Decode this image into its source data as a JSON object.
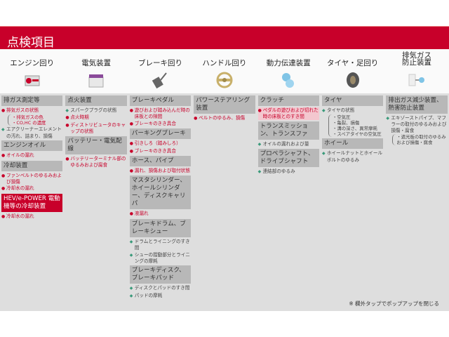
{
  "header": {
    "title": "点検項目"
  },
  "categories": [
    {
      "label": "エンジン回り",
      "icon": "engine-icon"
    },
    {
      "label": "電気装置",
      "icon": "battery-icon"
    },
    {
      "label": "ブレーキ回り",
      "icon": "brake-pedal-icon"
    },
    {
      "label": "ハンドル回り",
      "icon": "steering-wheel-icon"
    },
    {
      "label": "動力伝達装置",
      "icon": "gears-icon"
    },
    {
      "label": "タイヤ・足回り",
      "icon": "tire-icon"
    },
    {
      "label": "排気ガス\n防止装置",
      "icon": "exhaust-icon"
    }
  ],
  "colors": {
    "accent": "#c8002a",
    "green_bullet": "#3a9a7a",
    "section_bg": "#b8b8b8",
    "panel_bg": "#dedede"
  },
  "columns": [
    {
      "sections": [
        {
          "title": "排ガス測定等",
          "items": [
            {
              "bullet": "red",
              "text": "排気ガスの状態",
              "sub": [
                "・排気ガスの色",
                "・CO,HC の濃度"
              ]
            },
            {
              "bullet": "green",
              "text": "エアクリーナーエレメントの汚れ、詰まり、損傷"
            }
          ]
        },
        {
          "title": "エンジンオイル",
          "items": [
            {
              "bullet": "red",
              "text": "オイルの漏れ"
            }
          ]
        },
        {
          "title": "冷却装置",
          "items": [
            {
              "bullet": "red",
              "text": "ファンベルトのゆるみおよび損傷"
            },
            {
              "bullet": "red",
              "text": "冷却水の漏れ"
            }
          ]
        },
        {
          "title": "HEV/e-POWER 電動機等の冷却装置",
          "highlight": true,
          "items": [
            {
              "bullet": "red",
              "text": "冷却水の漏れ"
            }
          ]
        }
      ]
    },
    {
      "sections": [
        {
          "title": "点火装置",
          "items": [
            {
              "bullet": "green",
              "text": "スパークプラグの状態"
            },
            {
              "bullet": "red",
              "text": "点火時期"
            },
            {
              "bullet": "red",
              "text": "ディストリビュータのキャップの状態"
            }
          ]
        },
        {
          "title": "バッテリー・電気配線",
          "items": [
            {
              "bullet": "red",
              "text": "バッテリーターミナル部のゆるみおよび腐食"
            }
          ]
        }
      ]
    },
    {
      "sections": [
        {
          "title": "ブレーキペダル",
          "items": [
            {
              "bullet": "red",
              "text": "遊びおよび踏み込んだ時の床板との隙間"
            },
            {
              "bullet": "red",
              "text": "ブレーキのきき具合"
            }
          ]
        },
        {
          "title": "パーキングブレーキ",
          "items": [
            {
              "bullet": "red",
              "text": "引きしろ（踏みしろ）"
            },
            {
              "bullet": "red",
              "text": "ブレーキのきき具合"
            }
          ]
        },
        {
          "title": "ホース、パイプ",
          "items": [
            {
              "bullet": "red",
              "text": "漏れ、損傷および取付状態"
            }
          ]
        },
        {
          "title": "マスタシリンダー、ホイールシリンダー、ディスクキャリパ",
          "items": [
            {
              "bullet": "red",
              "text": "液漏れ"
            }
          ]
        },
        {
          "title": "ブレーキドラム、ブレーキシュー",
          "items": [
            {
              "bullet": "green",
              "text": "ドラムとライニングのすき間"
            },
            {
              "bullet": "green",
              "text": "シューの摺動部分とライニングの摩耗"
            }
          ]
        },
        {
          "title": "ブレーキディスク、ブレーキパッド",
          "items": [
            {
              "bullet": "green",
              "text": "ディスクとパッドのすき間"
            },
            {
              "bullet": "green",
              "text": "パッドの摩耗"
            }
          ]
        }
      ]
    },
    {
      "sections": [
        {
          "title": "パワーステアリング装置",
          "items": [
            {
              "bullet": "red",
              "text": "ベルトのゆるみ、損傷"
            }
          ]
        }
      ]
    },
    {
      "sections": [
        {
          "title": "クラッチ",
          "items": [
            {
              "bullet": "red",
              "text": "ペダルの遊びおよび切れた時の床板とのすき間",
              "selected": true
            }
          ]
        },
        {
          "title": "トランスミッション、トランスファ",
          "items": [
            {
              "bullet": "green",
              "text": "オイルの漏れおよび量"
            }
          ]
        },
        {
          "title": "プロペラシャフト、ドライブシャフト",
          "items": [
            {
              "bullet": "green",
              "text": "連結部のゆるみ"
            }
          ]
        }
      ]
    },
    {
      "sections": [
        {
          "title": "タイヤ",
          "items": [
            {
              "bullet": "green",
              "text": "タイヤの状態",
              "sub": [
                "・空気圧",
                "・亀裂、損傷",
                "・溝の深さ、異常摩耗",
                "・スペアタイヤの空気圧"
              ]
            }
          ]
        },
        {
          "title": "ホイール",
          "items": [
            {
              "bullet": "green",
              "text": "ホイールナットとホイールボルトのゆるみ"
            }
          ]
        }
      ]
    },
    {
      "sections": [
        {
          "title": "排出ガス減少装置、熱害防止装置",
          "items": [
            {
              "bullet": "green",
              "text": "エキゾーストパイプ、マフラーの取付のゆるみおよび損傷・腐食",
              "sub": [
                "・遮光板の取付のゆるみおよび損傷・腐食"
              ]
            }
          ]
        }
      ]
    }
  ],
  "footer": {
    "note": "※ 欄外タップでポップアップを閉じる"
  }
}
